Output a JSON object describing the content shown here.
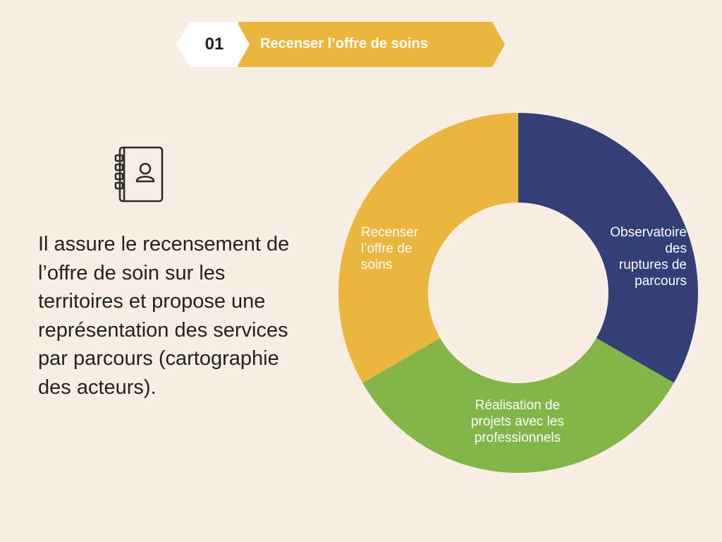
{
  "header": {
    "number": "01",
    "title": "Recenser l’offre de soins"
  },
  "description": "Il assure le recensement de l’offre de soin sur les territoires et propose une représentation des services par parcours (cartographie des acteurs).",
  "icon": "contact-book-icon",
  "colors": {
    "background": "#f8eee4",
    "yellow": "#ebb63d",
    "navy": "#343e77",
    "green": "#84b548",
    "white": "#ffffff"
  },
  "chart_data": {
    "type": "pie",
    "style": "donut",
    "segments": [
      {
        "label": "Observatoire des ruptures de parcours",
        "value": 1,
        "color": "#343e77"
      },
      {
        "label": "Réalisation de projets avec les professionnels",
        "value": 1,
        "color": "#84b548"
      },
      {
        "label": "Recenser l’offre de soins",
        "value": 1,
        "color": "#ebb63d"
      }
    ]
  }
}
